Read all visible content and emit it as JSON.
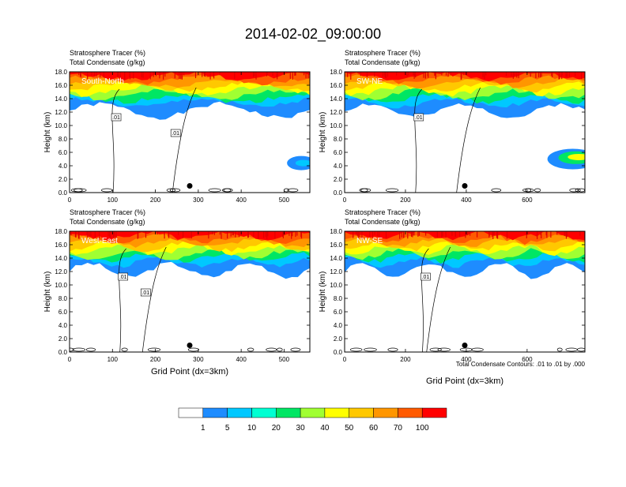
{
  "title": "2014-02-02_09:00:00",
  "footnote": "Total Condensate Contours: .01 to .01 by .000",
  "colorbar": {
    "labels": [
      "1",
      "5",
      "10",
      "20",
      "30",
      "40",
      "50",
      "60",
      "70",
      "100"
    ],
    "colors": [
      "#ffffff",
      "#1e8cff",
      "#00c8ff",
      "#00ffd2",
      "#00e664",
      "#00ff00",
      "#a0ff32",
      "#ffff00",
      "#ffc800",
      "#ff9600",
      "#ff5a00",
      "#ff0000"
    ]
  },
  "chart_data": [
    {
      "type": "heatmap",
      "name": "South-North",
      "title_line1": "Stratosphere Tracer   (%)",
      "title_line2": "Total Condensate   (g/kg)",
      "ylabel": "Height (km)",
      "xlabel": "",
      "xlim": [
        0,
        560
      ],
      "ylim": [
        0,
        18
      ],
      "xticks": [
        0,
        100,
        200,
        300,
        400,
        500
      ],
      "yticks": [
        "0.0",
        "2.0",
        "4.0",
        "6.0",
        "8.0",
        "10.0",
        "12.0",
        "14.0",
        "16.0",
        "18.0"
      ],
      "contour_labels": [
        ".01",
        ".01"
      ],
      "marker_x": 280
    },
    {
      "type": "heatmap",
      "name": "SW-NE",
      "title_line1": "Stratosphere Tracer   (%)",
      "title_line2": "Total Condensate   (g/kg)",
      "ylabel": "Height (km)",
      "xlabel": "",
      "xlim": [
        0,
        790
      ],
      "ylim": [
        0,
        18
      ],
      "xticks": [
        0,
        200,
        400,
        600
      ],
      "yticks": [
        "0.0",
        "2.0",
        "4.0",
        "6.0",
        "8.0",
        "10.0",
        "12.0",
        "14.0",
        "16.0",
        "18.0"
      ],
      "contour_labels": [
        ".01"
      ],
      "marker_x": 395
    },
    {
      "type": "heatmap",
      "name": "West-East",
      "title_line1": "Stratosphere Tracer   (%)",
      "title_line2": "Total Condensate   (g/kg)",
      "ylabel": "Height (km)",
      "xlabel": "Grid Point (dx=3km)",
      "xlim": [
        0,
        560
      ],
      "ylim": [
        0,
        18
      ],
      "xticks": [
        0,
        100,
        200,
        300,
        400,
        500
      ],
      "yticks": [
        "0.0",
        "2.0",
        "4.0",
        "6.0",
        "8.0",
        "10.0",
        "12.0",
        "14.0",
        "16.0",
        "18.0"
      ],
      "contour_labels": [
        ".01",
        ".01"
      ],
      "marker_x": 280
    },
    {
      "type": "heatmap",
      "name": "NW-SE",
      "title_line1": "Stratosphere Tracer   (%)",
      "title_line2": "Total Condensate   (g/kg)",
      "ylabel": "Height (km)",
      "xlabel": "Grid Point (dx=3km)",
      "xlim": [
        0,
        790
      ],
      "ylim": [
        0,
        18
      ],
      "xticks": [
        0,
        200,
        400,
        600
      ],
      "yticks": [
        "0.0",
        "2.0",
        "4.0",
        "6.0",
        "8.0",
        "10.0",
        "12.0",
        "14.0",
        "16.0",
        "18.0"
      ],
      "contour_labels": [
        ".01"
      ],
      "marker_x": 395
    }
  ]
}
